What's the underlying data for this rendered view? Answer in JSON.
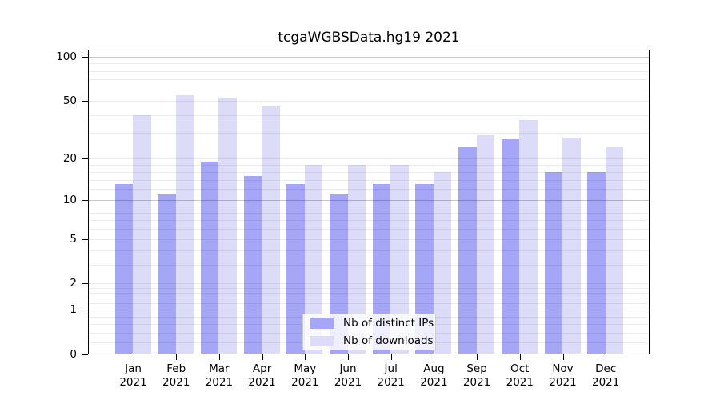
{
  "chart_data": {
    "type": "bar",
    "title": "tcgaWGBSData.hg19 2021",
    "categories": [
      "Jan",
      "Feb",
      "Mar",
      "Apr",
      "May",
      "Jun",
      "Jul",
      "Aug",
      "Sep",
      "Oct",
      "Nov",
      "Dec"
    ],
    "year": "2021",
    "series": [
      {
        "name": "Nb of distinct IPs",
        "color": "#a6a6f6",
        "values": [
          13,
          11,
          19,
          15,
          13,
          11,
          13,
          13,
          24,
          27,
          16,
          16
        ]
      },
      {
        "name": "Nb of downloads",
        "color": "#dcdcf9",
        "values": [
          40,
          55,
          53,
          46,
          18,
          18,
          18,
          16,
          29,
          37,
          28,
          24
        ]
      }
    ],
    "xlabel": "",
    "ylabel": "",
    "yscale": "log10(1+x)",
    "yticks": [
      0,
      1,
      2,
      5,
      10,
      20,
      50,
      100
    ],
    "ylim": [
      0,
      112
    ],
    "grid": true,
    "legend_position": "bottom-center",
    "gridlines": {
      "minor": [
        0.2,
        0.4,
        0.6,
        0.8,
        1.2,
        1.4,
        1.6,
        1.8,
        2,
        3,
        4,
        5,
        6,
        7,
        8,
        9,
        12,
        14,
        16,
        18,
        20,
        30,
        40,
        50,
        60,
        70,
        80,
        90
      ],
      "major": [
        1,
        10,
        100
      ]
    },
    "colors": {
      "axis": "#000000",
      "background": "#ffffff",
      "legend_border": "#cccccc"
    }
  }
}
